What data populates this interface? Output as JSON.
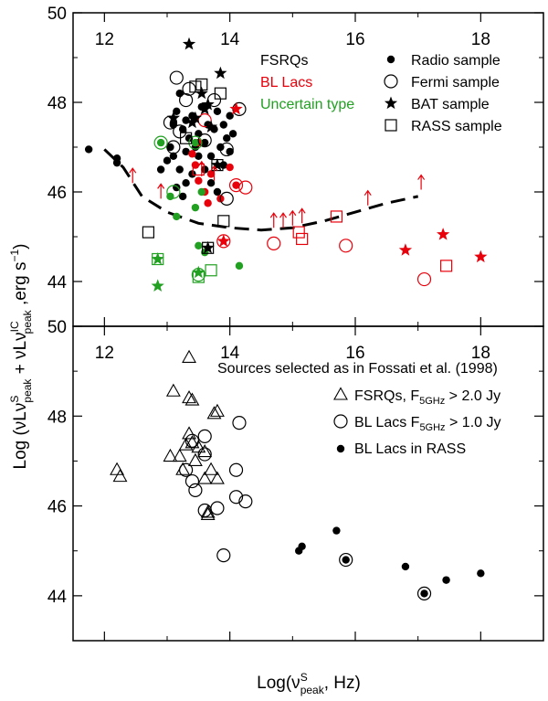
{
  "chart_data": [
    {
      "type": "scatter",
      "panel": "top",
      "xlim": [
        11.5,
        19
      ],
      "ylim": [
        43,
        50
      ],
      "xticks": [
        "12",
        "14",
        "16",
        "18"
      ],
      "yticks": [
        "44",
        "46",
        "48",
        "50"
      ],
      "ylabel_main": "Log (νLν",
      "ylabel_s": "S",
      "ylabel_peak": "peak",
      "ylabel_plus": " + νLν",
      "ylabel_ic": "IC",
      "ylabel_peak2": "peak",
      "ylabel_units": " ,erg s",
      "ylabel_exp": "−1",
      "ylabel_close": ")",
      "legend_types": [
        {
          "label": "FSRQs",
          "color": "#000000"
        },
        {
          "label": "BL Lacs",
          "color": "#e8000b"
        },
        {
          "label": "Uncertain type",
          "color": "#22a022"
        }
      ],
      "legend_samples": [
        {
          "label": "Radio sample",
          "symbol": "dot"
        },
        {
          "label": "Fermi sample",
          "symbol": "circle"
        },
        {
          "label": "BAT sample",
          "symbol": "star"
        },
        {
          "label": "RASS sample",
          "symbol": "square"
        }
      ],
      "series": [
        {
          "name": "Radio sample FSRQs",
          "symbol": "dot",
          "color": "#000000",
          "points": [
            [
              11.75,
              46.95
            ],
            [
              12.2,
              46.75
            ],
            [
              12.2,
              46.65
            ],
            [
              12.9,
              46.5
            ],
            [
              13.0,
              46.7
            ],
            [
              13.05,
              47.0
            ],
            [
              13.1,
              47.5
            ],
            [
              13.15,
              47.8
            ],
            [
              13.2,
              48.2
            ],
            [
              13.25,
              47.4
            ],
            [
              13.3,
              47.6
            ],
            [
              13.3,
              46.9
            ],
            [
              13.35,
              47.2
            ],
            [
              13.4,
              47.7
            ],
            [
              13.45,
              47.0
            ],
            [
              13.5,
              47.3
            ],
            [
              13.55,
              47.9
            ],
            [
              13.6,
              47.1
            ],
            [
              13.65,
              47.5
            ],
            [
              13.7,
              46.8
            ],
            [
              13.75,
              47.4
            ],
            [
              13.8,
              47.8
            ],
            [
              13.85,
              47.0
            ],
            [
              13.9,
              47.5
            ],
            [
              13.95,
              47.2
            ],
            [
              14.0,
              47.7
            ],
            [
              14.05,
              47.3
            ],
            [
              13.1,
              46.8
            ],
            [
              13.2,
              46.5
            ],
            [
              13.3,
              46.2
            ],
            [
              13.4,
              46.4
            ],
            [
              13.15,
              46.1
            ],
            [
              13.6,
              46.5
            ],
            [
              13.7,
              46.2
            ],
            [
              13.8,
              46.0
            ],
            [
              13.9,
              46.6
            ],
            [
              14.0,
              46.9
            ],
            [
              13.5,
              46.8
            ],
            [
              13.25,
              45.9
            ]
          ]
        },
        {
          "name": "Radio sample BL Lacs",
          "symbol": "dot",
          "color": "#e8000b",
          "points": [
            [
              13.45,
              46.6
            ],
            [
              13.5,
              46.25
            ],
            [
              13.6,
              46.0
            ],
            [
              13.65,
              45.75
            ],
            [
              13.7,
              46.4
            ],
            [
              13.85,
              45.85
            ],
            [
              14.0,
              46.55
            ],
            [
              14.1,
              46.15
            ],
            [
              13.5,
              47.1
            ],
            [
              13.4,
              46.85
            ]
          ]
        },
        {
          "name": "Radio sample Uncertain",
          "symbol": "dot",
          "color": "#22a022",
          "points": [
            [
              12.9,
              47.1
            ],
            [
              13.05,
              45.9
            ],
            [
              13.15,
              45.45
            ],
            [
              13.45,
              47.1
            ],
            [
              13.55,
              46.0
            ],
            [
              13.45,
              45.65
            ],
            [
              14.15,
              44.35
            ],
            [
              13.5,
              44.8
            ],
            [
              13.6,
              44.65
            ]
          ]
        },
        {
          "name": "Fermi sample FSRQs",
          "symbol": "circle",
          "color": "#000000",
          "points": [
            [
              13.15,
              48.55
            ],
            [
              13.3,
              48.05
            ],
            [
              13.2,
              47.35
            ],
            [
              13.1,
              47.0
            ],
            [
              13.35,
              48.3
            ],
            [
              13.75,
              48.05
            ],
            [
              13.95,
              46.95
            ],
            [
              13.95,
              45.85
            ],
            [
              14.15,
              47.85
            ],
            [
              13.6,
              47.15
            ],
            [
              13.05,
              47.55
            ]
          ]
        },
        {
          "name": "Fermi sample BL Lacs",
          "symbol": "circle",
          "color": "#e8000b",
          "points": [
            [
              13.6,
              47.6
            ],
            [
              14.1,
              46.15
            ],
            [
              14.25,
              46.1
            ],
            [
              14.7,
              44.85
            ],
            [
              15.85,
              44.8
            ],
            [
              17.1,
              44.05
            ],
            [
              13.9,
              44.9
            ]
          ]
        },
        {
          "name": "Fermi sample Uncertain",
          "symbol": "circle",
          "color": "#22a022",
          "points": [
            [
              12.9,
              47.1
            ],
            [
              13.1,
              46.0
            ],
            [
              13.45,
              47.1
            ],
            [
              13.5,
              44.15
            ]
          ]
        },
        {
          "name": "BAT sample FSRQs",
          "symbol": "star",
          "color": "#000000",
          "points": [
            [
              13.35,
              49.3
            ],
            [
              13.85,
              48.65
            ],
            [
              13.65,
              47.95
            ],
            [
              13.1,
              47.65
            ],
            [
              13.45,
              47.65
            ],
            [
              13.7,
              47.45
            ],
            [
              13.55,
              48.2
            ],
            [
              13.6,
              47.85
            ],
            [
              13.8,
              46.6
            ],
            [
              13.65,
              44.75
            ],
            [
              13.4,
              47.55
            ]
          ]
        },
        {
          "name": "BAT sample BL Lacs",
          "symbol": "star",
          "color": "#e8000b",
          "points": [
            [
              14.1,
              47.85
            ],
            [
              16.8,
              44.7
            ],
            [
              17.4,
              45.05
            ],
            [
              18.0,
              44.55
            ],
            [
              13.9,
              44.9
            ]
          ]
        },
        {
          "name": "BAT sample Uncertain",
          "symbol": "star",
          "color": "#22a022",
          "points": [
            [
              12.85,
              44.5
            ],
            [
              12.85,
              43.9
            ],
            [
              13.5,
              44.2
            ]
          ]
        },
        {
          "name": "RASS sample FSRQs",
          "symbol": "square",
          "color": "#000000",
          "points": [
            [
              12.7,
              45.1
            ],
            [
              13.45,
              48.35
            ],
            [
              13.55,
              48.4
            ],
            [
              13.85,
              48.2
            ],
            [
              13.3,
              47.2
            ],
            [
              13.8,
              46.6
            ],
            [
              13.9,
              45.35
            ],
            [
              13.65,
              44.75
            ]
          ]
        },
        {
          "name": "RASS sample BL Lacs",
          "symbol": "square",
          "color": "#e8000b",
          "points": [
            [
              15.1,
              45.1
            ],
            [
              15.15,
              44.95
            ],
            [
              15.7,
              45.45
            ],
            [
              17.45,
              44.35
            ],
            [
              13.5,
              46.5
            ]
          ]
        },
        {
          "name": "RASS sample Uncertain",
          "symbol": "square",
          "color": "#22a022",
          "points": [
            [
              12.85,
              44.5
            ],
            [
              13.5,
              44.1
            ],
            [
              13.7,
              44.25
            ]
          ]
        },
        {
          "name": "Upper limits (arrows)",
          "symbol": "up-arrow",
          "color": "#e8000b",
          "points": [
            [
              12.45,
              46.2
            ],
            [
              12.9,
              45.85
            ],
            [
              13.55,
              46.35
            ],
            [
              13.75,
              46.25
            ],
            [
              14.7,
              45.2
            ],
            [
              14.85,
              45.2
            ],
            [
              15.0,
              45.25
            ],
            [
              15.15,
              45.3
            ],
            [
              16.2,
              45.7
            ],
            [
              17.05,
              46.05
            ]
          ]
        }
      ],
      "line": {
        "style": "dashed",
        "points": [
          [
            12.0,
            46.95
          ],
          [
            12.3,
            46.55
          ],
          [
            12.6,
            45.9
          ],
          [
            13.0,
            45.55
          ],
          [
            13.5,
            45.3
          ],
          [
            14.0,
            45.2
          ],
          [
            14.5,
            45.15
          ],
          [
            15.0,
            45.2
          ],
          [
            15.5,
            45.35
          ],
          [
            16.0,
            45.55
          ],
          [
            16.5,
            45.75
          ],
          [
            17.0,
            45.9
          ]
        ]
      }
    },
    {
      "type": "scatter",
      "panel": "bottom",
      "xlim": [
        11.5,
        19
      ],
      "ylim": [
        43,
        50
      ],
      "xticks": [
        "12",
        "14",
        "16",
        "18"
      ],
      "yticks": [
        "44",
        "46",
        "48",
        "50"
      ],
      "xlabel_main": "Log(ν",
      "xlabel_s": "S",
      "xlabel_peak": "peak",
      "xlabel_rest": ", Hz)",
      "annotation": "Sources selected as in Fossati et al. (1998)",
      "legend": [
        {
          "symbol": "triangle",
          "label_main": "FSRQs,  F",
          "label_sub": "5GHz",
          "label_rest": " > 2.0 Jy"
        },
        {
          "symbol": "circle",
          "label_main": "BL Lacs F",
          "label_sub": "5GHz",
          "label_rest": " > 1.0 Jy"
        },
        {
          "symbol": "dot",
          "label_main": "BL Lacs in RASS",
          "label_sub": "",
          "label_rest": ""
        }
      ],
      "series": [
        {
          "name": "FSRQs F5GHz > 2.0 Jy",
          "symbol": "triangle",
          "points": [
            [
              13.35,
              49.3
            ],
            [
              13.1,
              48.55
            ],
            [
              13.35,
              48.4
            ],
            [
              13.4,
              48.35
            ],
            [
              13.75,
              48.05
            ],
            [
              13.8,
              48.1
            ],
            [
              13.35,
              47.6
            ],
            [
              13.3,
              47.35
            ],
            [
              13.2,
              47.1
            ],
            [
              13.05,
              47.1
            ],
            [
              13.4,
              47.4
            ],
            [
              13.5,
              47.3
            ],
            [
              13.45,
              47.0
            ],
            [
              13.25,
              46.8
            ],
            [
              13.6,
              47.2
            ],
            [
              13.7,
              46.8
            ],
            [
              13.6,
              46.6
            ],
            [
              12.2,
              46.8
            ],
            [
              12.25,
              46.65
            ],
            [
              13.8,
              46.6
            ],
            [
              13.65,
              45.85
            ],
            [
              13.65,
              45.8
            ]
          ]
        },
        {
          "name": "BL Lacs F5GHz > 1.0 Jy",
          "symbol": "circle",
          "points": [
            [
              14.15,
              47.85
            ],
            [
              13.6,
              47.55
            ],
            [
              13.4,
              47.45
            ],
            [
              13.6,
              47.15
            ],
            [
              13.3,
              46.8
            ],
            [
              13.4,
              46.55
            ],
            [
              13.45,
              46.35
            ],
            [
              13.6,
              45.9
            ],
            [
              13.8,
              45.95
            ],
            [
              14.1,
              46.8
            ],
            [
              14.1,
              46.2
            ],
            [
              14.25,
              46.1
            ],
            [
              13.9,
              44.9
            ],
            [
              15.85,
              44.8
            ],
            [
              17.1,
              44.05
            ]
          ]
        },
        {
          "name": "BL Lacs in RASS",
          "symbol": "dot",
          "points": [
            [
              15.1,
              45.0
            ],
            [
              15.15,
              45.1
            ],
            [
              15.7,
              45.45
            ],
            [
              15.85,
              44.8
            ],
            [
              16.8,
              44.65
            ],
            [
              17.1,
              44.05
            ],
            [
              17.45,
              44.35
            ],
            [
              18.0,
              44.5
            ]
          ]
        }
      ]
    }
  ]
}
